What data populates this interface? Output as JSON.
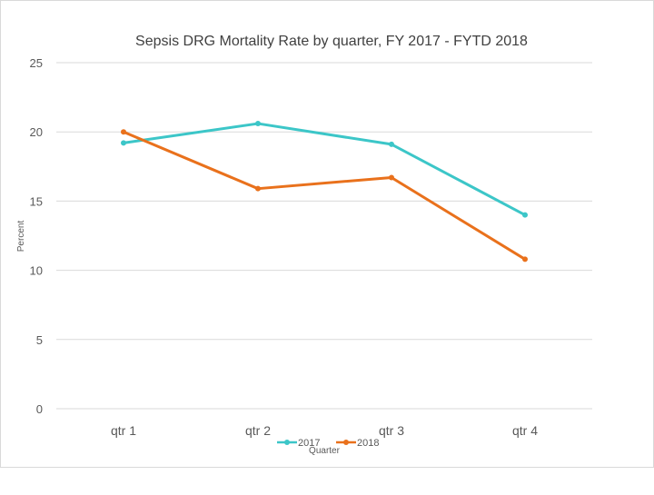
{
  "chart_data": {
    "type": "line",
    "title": "Sepsis DRG Mortality Rate by quarter, FY 2017 - FYTD 2018",
    "xlabel": "Quarter",
    "ylabel": "Percent",
    "categories": [
      "qtr 1",
      "qtr 2",
      "qtr 3",
      "qtr 4"
    ],
    "ylim": [
      0,
      25
    ],
    "yticks": [
      0,
      5,
      10,
      15,
      20,
      25
    ],
    "grid": true,
    "legend_position": "bottom",
    "series": [
      {
        "name": "2017",
        "color": "#3cc6c8",
        "values": [
          19.2,
          20.6,
          19.1,
          14.0
        ]
      },
      {
        "name": "2018",
        "color": "#e9711c",
        "values": [
          20.0,
          15.9,
          16.7,
          10.8
        ]
      }
    ]
  }
}
